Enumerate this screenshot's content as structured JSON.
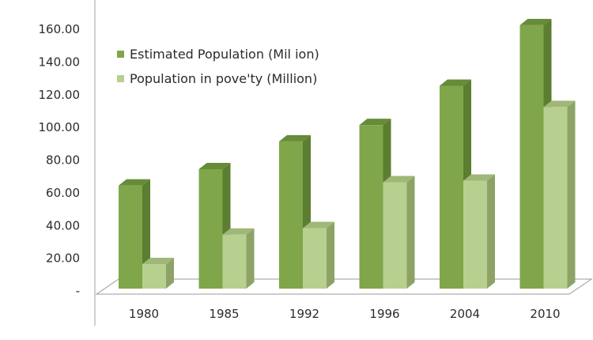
{
  "chart_data": {
    "type": "bar",
    "categories": [
      "1980",
      "1985",
      "1992",
      "1996",
      "2004",
      "2010"
    ],
    "series": [
      {
        "name": "Estimated Population (Mil ion)",
        "values": [
          63,
          73,
          90,
          100,
          124,
          161
        ]
      },
      {
        "name": "Population in pove'ty (Million)",
        "values": [
          15,
          33,
          37,
          65,
          66,
          111
        ]
      }
    ],
    "y_tick_labels": [
      "-",
      "20.00",
      "40.00",
      "60.00",
      "80.00",
      "100.00",
      "120.00",
      "140.00",
      "160.00"
    ],
    "ylim": [
      0,
      160
    ],
    "grid": false,
    "legend_position": "top-left",
    "style": "3d-clustered-column",
    "colors": {
      "series1_front": "#7fa64a",
      "series1_side": "#5c7e30",
      "series1_top": "#668c37",
      "series2_front": "#b8d08f",
      "series2_side": "#8da366",
      "series2_top": "#9fb878",
      "floor": "#ffffff",
      "floor_stroke": "#9a9a9a"
    }
  }
}
